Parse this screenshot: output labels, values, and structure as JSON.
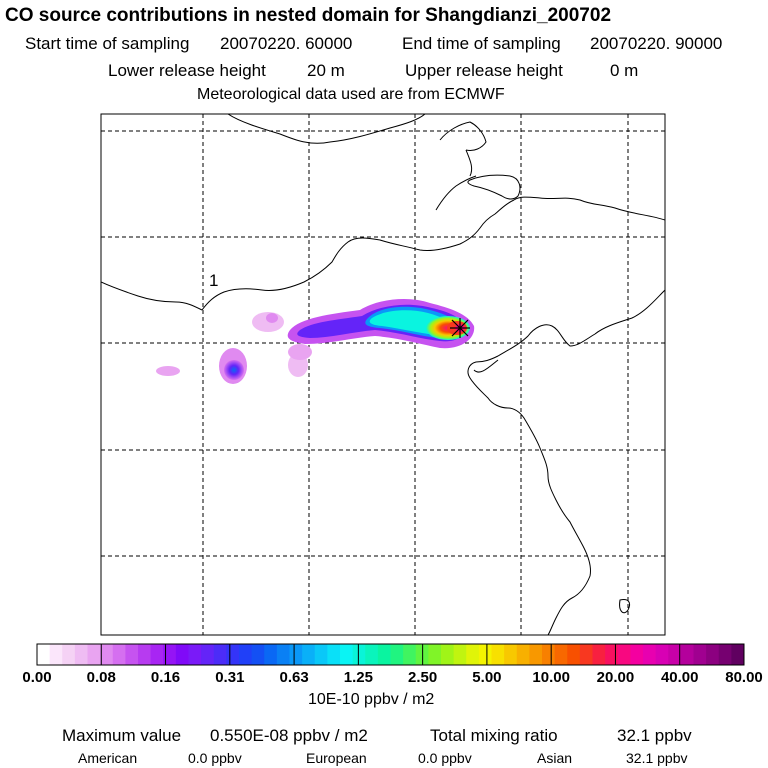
{
  "header": {
    "title": "CO  source contributions in nested domain for Shangdianzi_200702",
    "start_label": "Start time of sampling",
    "start_value": "20070220. 60000",
    "end_label": "End time of sampling",
    "end_value": "20070220. 90000",
    "lower_label": "Lower release height",
    "lower_value": "20 m",
    "upper_label": "Upper release height",
    "upper_value": "0 m",
    "met": "Meteorological data used are from ECMWF"
  },
  "map": {
    "contour_label": "1",
    "release_marker": "receptor-star-icon"
  },
  "colorbar": {
    "labels": [
      "0.00",
      "0.08",
      "0.16",
      "0.31",
      "0.63",
      "1.25",
      "2.50",
      "5.00",
      "10.00",
      "20.00",
      "40.00",
      "80.00"
    ],
    "unit": "10E-10 ppbv / m2",
    "colors": [
      "#ffffff",
      "#fbe6fb",
      "#f5d2f5",
      "#efbcf3",
      "#e9a4f1",
      "#e08af0",
      "#d56ff0",
      "#c653f0",
      "#b73bf0",
      "#a825f3",
      "#9514f5",
      "#800af8",
      "#7a1af8",
      "#6424f8",
      "#4c2cf8",
      "#3434f8",
      "#2040f8",
      "#1450f4",
      "#0a68f4",
      "#0a80f4",
      "#0a98f8",
      "#0ab0f8",
      "#0ac8f8",
      "#0ae0f8",
      "#0af4f4",
      "#0af4d8",
      "#0af4bc",
      "#0af4a0",
      "#20f480",
      "#40f460",
      "#60f440",
      "#80f428",
      "#a0f418",
      "#c0f410",
      "#e0f408",
      "#f4f400",
      "#f8e000",
      "#f8c800",
      "#f8b000",
      "#f89800",
      "#f88000",
      "#f86800",
      "#f85000",
      "#f83820",
      "#f82040",
      "#f81060",
      "#f80880",
      "#f400a0",
      "#e800b0",
      "#d800b4",
      "#c800a8",
      "#b4009c",
      "#a00090",
      "#8c0080",
      "#760070",
      "#600060"
    ]
  },
  "footer": {
    "max_label": "Maximum value",
    "max_value": "0.550E-08 ppbv / m2",
    "total_label": "Total mixing ratio",
    "total_value": "32.1 ppbv",
    "american_label": "American",
    "american_value": "0.0 ppbv",
    "european_label": "European",
    "european_value": "0.0 ppbv",
    "asian_label": "Asian",
    "asian_value": "32.1 ppbv"
  }
}
